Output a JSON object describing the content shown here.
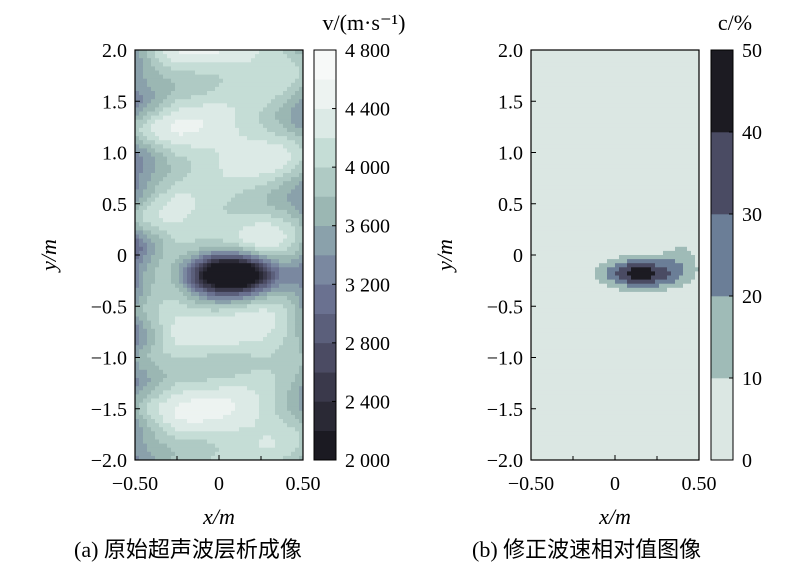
{
  "figure": {
    "caption_a": "(a) 原始超声波层析成像",
    "caption_b": "(b) 修正波速相对值图像"
  },
  "chart_data": [
    {
      "type": "heatmap",
      "panel": "a",
      "xlabel": "x/m",
      "ylabel": "y/m",
      "xlim": [
        -0.5,
        0.5
      ],
      "ylim": [
        -2.0,
        2.0
      ],
      "xticks": [
        -0.5,
        0,
        0.5
      ],
      "xtick_labels": [
        "−0.50",
        "0",
        "0.50"
      ],
      "yticks": [
        2.0,
        1.5,
        1.0,
        0.5,
        0,
        -0.5,
        -1.0,
        -1.5,
        -2.0
      ],
      "ytick_labels": [
        "2.0",
        "1.5",
        "1.0",
        "0.5",
        "0",
        "−0.5",
        "−1.0",
        "−1.5",
        "−2.0"
      ],
      "colorbar": {
        "label": "v/(m·s⁻¹)",
        "range": [
          2000,
          4800
        ],
        "ticks": [
          4800,
          4400,
          4000,
          3600,
          3200,
          2800,
          2400,
          2000
        ],
        "tick_labels": [
          "4 800",
          "4 400",
          "4 000",
          "3 600",
          "3 200",
          "2 800",
          "2 400",
          "2 000"
        ],
        "colors": [
          "#1b1a22",
          "#2a2935",
          "#3a394b",
          "#4b4b63",
          "#5b5f7b",
          "#6a7190",
          "#7a88a0",
          "#8aa1ab",
          "#9bb7b3",
          "#afcac4",
          "#c5ddd6",
          "#dceae6",
          "#edf3f1",
          "#f7f9f8"
        ]
      },
      "background_velocity": 4200,
      "anomaly": {
        "center_x": 0.08,
        "center_y": -0.18,
        "min_velocity": 2000
      }
    },
    {
      "type": "heatmap",
      "panel": "b",
      "xlabel": "x/m",
      "ylabel": "y/m",
      "xlim": [
        -0.5,
        0.5
      ],
      "ylim": [
        -2.0,
        2.0
      ],
      "xticks": [
        -0.5,
        0,
        0.5
      ],
      "xtick_labels": [
        "−0.50",
        "0",
        "0.50"
      ],
      "yticks": [
        2.0,
        1.5,
        1.0,
        0.5,
        0,
        -0.5,
        -1.0,
        -1.5,
        -2.0
      ],
      "ytick_labels": [
        "2.0",
        "1.5",
        "1.0",
        "0.5",
        "0",
        "−0.5",
        "−1.0",
        "−1.5",
        "−2.0"
      ],
      "colorbar": {
        "label": "c/%",
        "range": [
          0,
          50
        ],
        "ticks": [
          50,
          40,
          30,
          20,
          10,
          0
        ],
        "tick_labels": [
          "50",
          "40",
          "30",
          "20",
          "10",
          "0"
        ],
        "colors": [
          "#dbe7e3",
          "#9fbbb7",
          "#6b7e97",
          "#4a4b63",
          "#1c1b22"
        ]
      },
      "anomaly": {
        "center_x": 0.15,
        "center_y": -0.18,
        "max_percent": 45
      }
    }
  ]
}
